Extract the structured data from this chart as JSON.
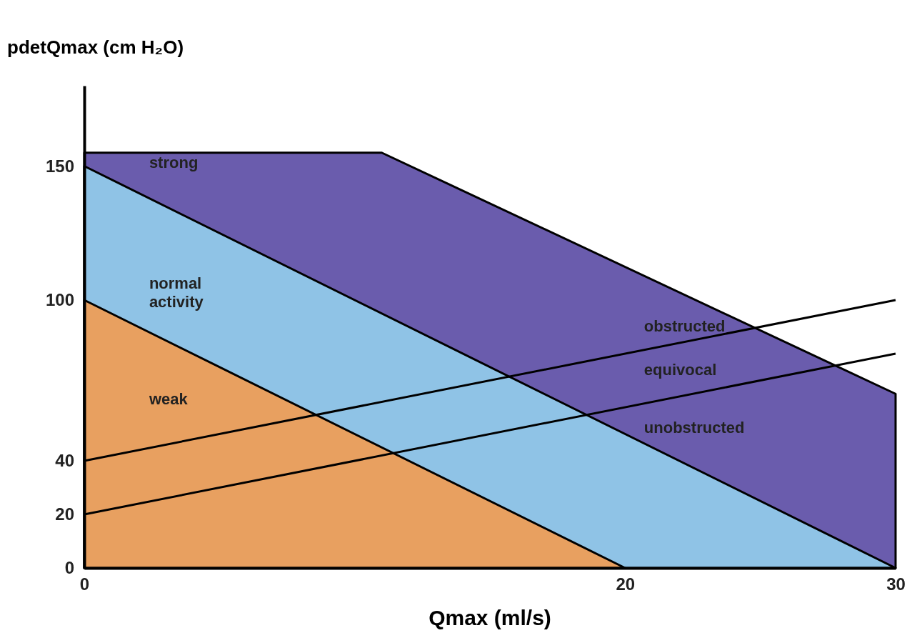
{
  "chart_data": {
    "type": "line",
    "xlabel": "Qmax (ml/s)",
    "ylabel": "pdetQmax (cm H₂O)",
    "xlim": [
      0,
      30
    ],
    "xticks": [
      0,
      20,
      30
    ],
    "ylim": [
      0,
      180
    ],
    "yticks": [
      0,
      20,
      40,
      100,
      150
    ],
    "grid": false,
    "marker": "none",
    "line_style": "solid",
    "series": [
      {
        "type": "area",
        "color": "#6a5cad",
        "x": [
          0,
          11,
          30
        ],
        "values": [
          155,
          155,
          65
        ]
      },
      {
        "type": "area",
        "color": "#8fc3e6",
        "x": [
          0,
          30
        ],
        "values": [
          150,
          0
        ]
      },
      {
        "type": "area",
        "color": "#e8a060",
        "x": [
          0,
          20
        ],
        "values": [
          100,
          0
        ]
      },
      {
        "color": "#000000",
        "x": [
          0,
          30
        ],
        "values": [
          40,
          100
        ]
      },
      {
        "color": "#000000",
        "x": [
          0,
          30
        ],
        "values": [
          20,
          80
        ]
      }
    ],
    "annotations": [
      "strong",
      "normal activity",
      "weak",
      "obstructed",
      "equivocal",
      "unobstructed"
    ]
  }
}
